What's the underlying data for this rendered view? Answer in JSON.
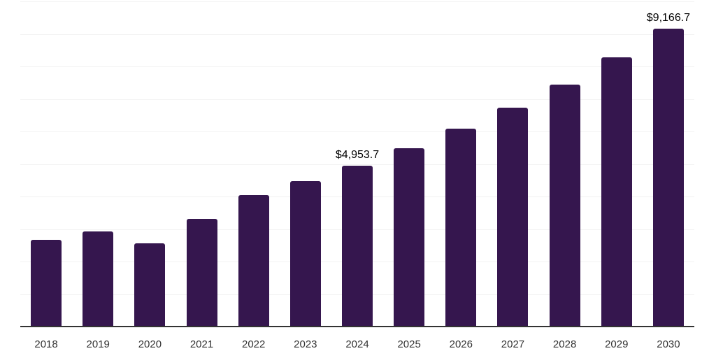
{
  "chart_data": {
    "type": "bar",
    "title": "",
    "xlabel": "",
    "ylabel": "",
    "categories": [
      "2018",
      "2019",
      "2020",
      "2021",
      "2022",
      "2023",
      "2024",
      "2025",
      "2026",
      "2027",
      "2028",
      "2029",
      "2030"
    ],
    "values": [
      2660,
      2925,
      2550,
      3320,
      4050,
      4465,
      4953.7,
      5490,
      6080,
      6725,
      7445,
      8290,
      9166.7
    ],
    "annotations": [
      {
        "index": 6,
        "text": "$4,953.7"
      },
      {
        "index": 12,
        "text": "$9,166.7"
      }
    ],
    "ylim": [
      0,
      10000
    ],
    "gridline_step": 1000,
    "grid": "horizontal-only",
    "legend": "none",
    "y_tick_labels_visible": false,
    "colors": {
      "bar": "#35164e",
      "grid": "#f2f2f2",
      "axis_line": "#333333",
      "x_tick_label": "#333333",
      "data_label": "#000000",
      "background": "#ffffff"
    }
  }
}
